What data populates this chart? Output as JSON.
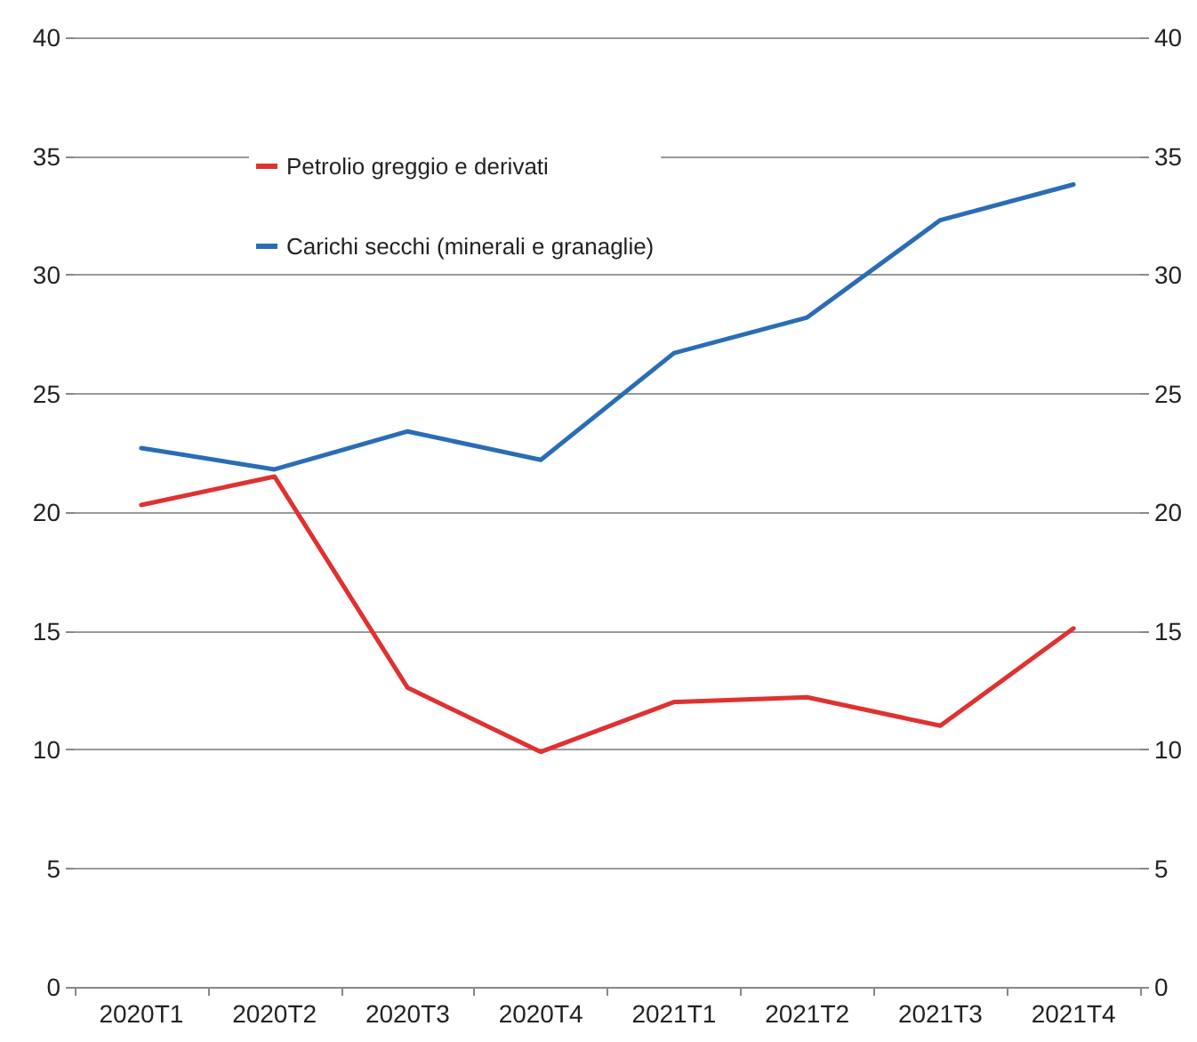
{
  "chart_data": {
    "type": "line",
    "categories": [
      "2020T1",
      "2020T2",
      "2020T3",
      "2020T4",
      "2021T1",
      "2021T2",
      "2021T3",
      "2021T4"
    ],
    "series": [
      {
        "name": "Petrolio greggio e derivati",
        "color": "#e03131",
        "values": [
          20.3,
          21.5,
          12.6,
          9.9,
          12.0,
          12.2,
          11.0,
          15.1
        ]
      },
      {
        "name": "Carichi secchi (minerali e granaglie)",
        "color": "#2a6db5",
        "values": [
          22.7,
          21.8,
          23.4,
          22.2,
          26.7,
          28.2,
          32.3,
          33.8
        ]
      }
    ],
    "ylim": [
      0,
      40
    ],
    "yticks": [
      0,
      5,
      10,
      15,
      20,
      25,
      30,
      35,
      40
    ],
    "y2lim": [
      0,
      40
    ],
    "y2ticks": [
      0,
      5,
      10,
      15,
      20,
      25,
      30,
      35,
      40
    ],
    "grid": "y",
    "legend": "top left",
    "marker": "none",
    "line_style": "solid"
  }
}
